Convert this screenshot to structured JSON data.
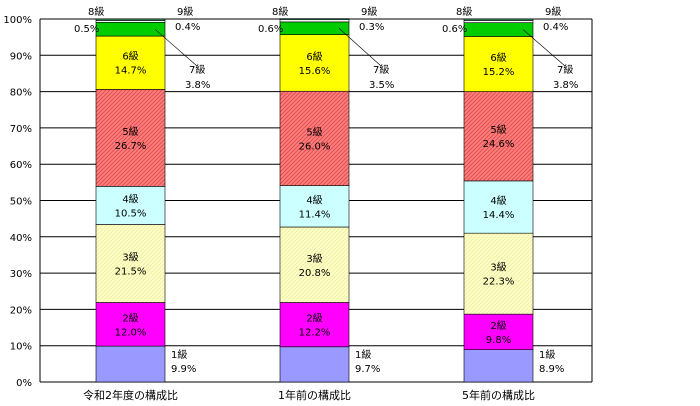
{
  "chart_data": {
    "type": "bar",
    "stacked": true,
    "ylim": [
      0,
      100
    ],
    "yticks": [
      "0%",
      "10%",
      "20%",
      "30%",
      "40%",
      "50%",
      "60%",
      "70%",
      "80%",
      "90%",
      "100%"
    ],
    "categories": [
      "令和2年度の構成比",
      "1年前の構成比",
      "5年前の構成比"
    ],
    "grid": true,
    "series": [
      {
        "grade": "1級",
        "color": "#9999FF",
        "values": [
          9.9,
          9.7,
          8.9
        ],
        "labels": [
          "9.9%",
          "9.7%",
          "8.9%"
        ]
      },
      {
        "grade": "2級",
        "color": "#FF00FF",
        "values": [
          12.0,
          12.2,
          9.8
        ],
        "labels": [
          "12.0%",
          "12.2%",
          "9.8%"
        ]
      },
      {
        "grade": "3級",
        "color": "#FFFFCC",
        "values": [
          21.5,
          20.8,
          22.3
        ],
        "labels": [
          "21.5%",
          "20.8%",
          "22.3%"
        ]
      },
      {
        "grade": "4級",
        "color": "#CCFFFF",
        "values": [
          10.5,
          11.4,
          14.4
        ],
        "labels": [
          "10.5%",
          "11.4%",
          "14.4%"
        ]
      },
      {
        "grade": "5級",
        "color": "#FF7F7F",
        "values": [
          26.7,
          26.0,
          24.6
        ],
        "labels": [
          "26.7%",
          "26.0%",
          "24.6%"
        ]
      },
      {
        "grade": "6級",
        "color": "#FFFF00",
        "values": [
          14.7,
          15.6,
          15.2
        ],
        "labels": [
          "14.7%",
          "15.6%",
          "15.2%"
        ]
      },
      {
        "grade": "7級",
        "color": "#00CC00",
        "values": [
          3.8,
          3.5,
          3.8
        ],
        "labels": [
          "3.8%",
          "3.5%",
          "3.8%"
        ]
      },
      {
        "grade": "8級",
        "color": "#FFFFFF",
        "values": [
          0.5,
          0.6,
          0.6
        ],
        "labels": [
          "0.5%",
          "0.6%",
          "0.6%"
        ]
      },
      {
        "grade": "9級",
        "color": "#339966",
        "values": [
          0.4,
          0.3,
          0.4
        ],
        "labels": [
          "0.4%",
          "0.3%",
          "0.4%"
        ]
      }
    ]
  }
}
